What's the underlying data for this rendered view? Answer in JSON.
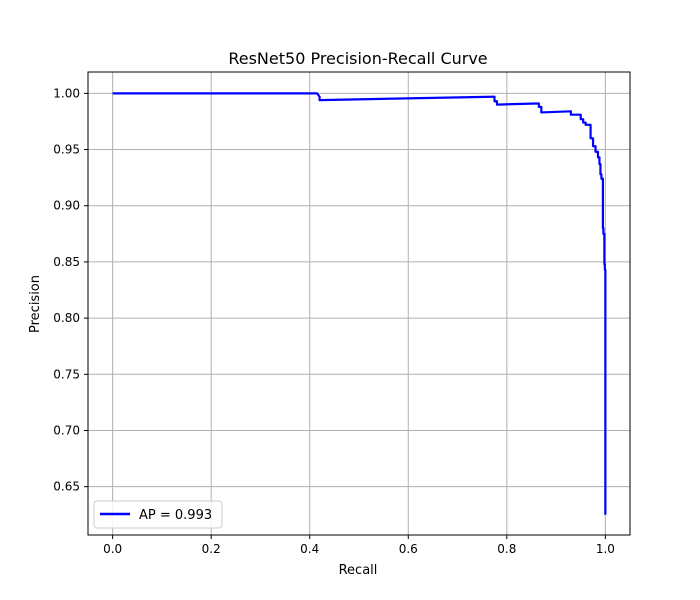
{
  "chart_data": {
    "type": "line",
    "title": "ResNet50 Precision-Recall Curve",
    "xlabel": "Recall",
    "ylabel": "Precision",
    "xlim": [
      -0.05,
      1.05
    ],
    "ylim": [
      0.607,
      1.019
    ],
    "grid": true,
    "legend_position": "lower-left",
    "x_ticks": [
      0.0,
      0.2,
      0.4,
      0.6,
      0.8,
      1.0
    ],
    "x_tick_labels": [
      "0.0",
      "0.2",
      "0.4",
      "0.6",
      "0.8",
      "1.0"
    ],
    "y_ticks": [
      0.65,
      0.7,
      0.75,
      0.8,
      0.85,
      0.9,
      0.95,
      1.0
    ],
    "y_tick_labels": [
      "0.65",
      "0.70",
      "0.75",
      "0.80",
      "0.85",
      "0.90",
      "0.95",
      "1.00"
    ],
    "series": [
      {
        "name": "AP = 0.993",
        "color": "#0000ff",
        "x": [
          0.0,
          0.415,
          0.42,
          0.42,
          0.77,
          0.775,
          0.775,
          0.78,
          0.78,
          0.86,
          0.865,
          0.865,
          0.87,
          0.87,
          0.93,
          0.93,
          0.95,
          0.95,
          0.955,
          0.955,
          0.96,
          0.96,
          0.97,
          0.97,
          0.975,
          0.975,
          0.98,
          0.98,
          0.985,
          0.985,
          0.988,
          0.988,
          0.99,
          0.99,
          0.992,
          0.992,
          0.995,
          0.995,
          0.996,
          0.996,
          0.998,
          0.998,
          0.999,
          0.999,
          1.0,
          1.0
        ],
        "y": [
          1.0,
          1.0,
          0.997,
          0.994,
          0.997,
          0.997,
          0.993,
          0.993,
          0.99,
          0.991,
          0.991,
          0.988,
          0.988,
          0.983,
          0.984,
          0.981,
          0.981,
          0.977,
          0.977,
          0.974,
          0.974,
          0.972,
          0.972,
          0.96,
          0.96,
          0.953,
          0.953,
          0.948,
          0.948,
          0.943,
          0.943,
          0.937,
          0.937,
          0.928,
          0.928,
          0.924,
          0.924,
          0.88,
          0.88,
          0.875,
          0.875,
          0.848,
          0.848,
          0.843,
          0.843,
          0.625
        ]
      }
    ]
  }
}
